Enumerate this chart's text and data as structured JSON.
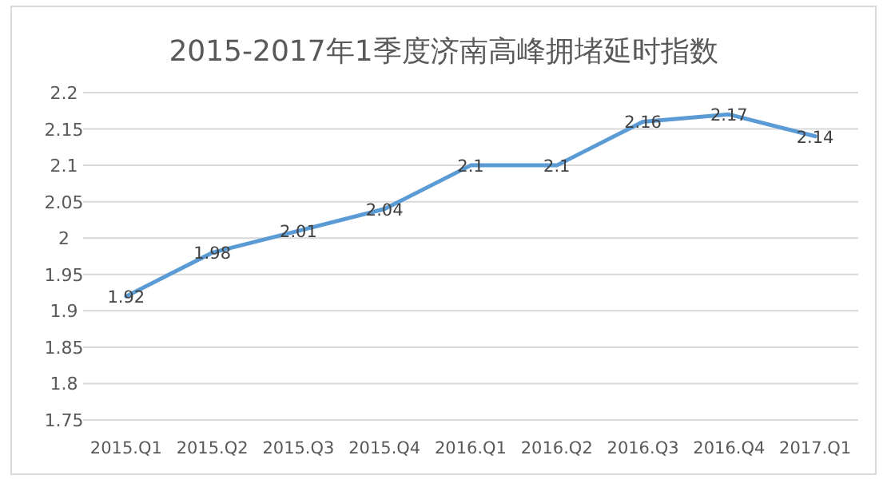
{
  "chart_data": {
    "type": "line",
    "title": "2015-2017年1季度济南高峰拥堵延时指数",
    "categories": [
      "2015.Q1",
      "2015.Q2",
      "2015.Q3",
      "2015.Q4",
      "2016.Q1",
      "2016.Q2",
      "2016.Q3",
      "2016.Q4",
      "2017.Q1"
    ],
    "series": [
      {
        "color": "#5b9bd5",
        "values": [
          1.92,
          1.98,
          2.01,
          2.04,
          2.1,
          2.1,
          2.16,
          2.17,
          2.14
        ]
      }
    ],
    "ylim": [
      1.75,
      2.2
    ],
    "yticks": [
      1.75,
      1.8,
      1.85,
      1.9,
      1.95,
      2,
      2.05,
      2.1,
      2.15,
      2.2
    ],
    "grid": "y",
    "data_labels": true,
    "marker": "none",
    "line_style": "solid"
  }
}
